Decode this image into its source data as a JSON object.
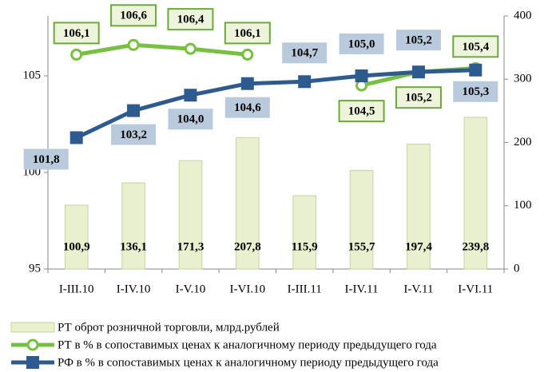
{
  "chart_data": {
    "type": "combo",
    "categories": [
      "I-III.10",
      "I-IV.10",
      "I-V.10",
      "I-VI.10",
      "I-III.11",
      "I-IV.11",
      "I-V.11",
      "I-VI.11"
    ],
    "series": [
      {
        "name": "РТ оброт розничной торговли, млрд.рублей",
        "type": "bar",
        "axis": "y2",
        "color": "#e8f0cf",
        "values": [
          100.9,
          136.1,
          171.3,
          207.8,
          115.9,
          155.7,
          197.4,
          239.8
        ],
        "value_labels": [
          "100,9",
          "136,1",
          "171,3",
          "207,8",
          "115,9",
          "155,7",
          "197,4",
          "239,8"
        ]
      },
      {
        "name": "РТ в % в сопоставимых ценах к аналогичному периоду предыдущего года",
        "type": "line",
        "axis": "y",
        "color": "#77c043",
        "values": [
          106.1,
          106.6,
          106.4,
          106.1,
          null,
          104.5,
          105.2,
          105.4
        ],
        "value_labels": [
          "106,1",
          "106,6",
          "106,4",
          "106,1",
          null,
          "104,5",
          "105,2",
          "105,4"
        ]
      },
      {
        "name": "РФ в % в сопоставимых ценах к аналогичному периоду предыдущего года",
        "type": "line",
        "axis": "y",
        "color": "#2d5b8f",
        "values": [
          101.8,
          103.2,
          104.0,
          104.6,
          104.7,
          105.0,
          105.2,
          105.3
        ],
        "value_labels": [
          "101,8",
          "103,2",
          "104,0",
          "104,6",
          "104,7",
          "105,0",
          "105,2",
          "105,3"
        ]
      }
    ],
    "ylim": [
      95,
      108.1
    ],
    "yticks": [
      95,
      100,
      105
    ],
    "y2lim": [
      0,
      400
    ],
    "y2ticks": [
      0,
      100,
      200,
      300,
      400
    ],
    "legend": "bottom"
  }
}
